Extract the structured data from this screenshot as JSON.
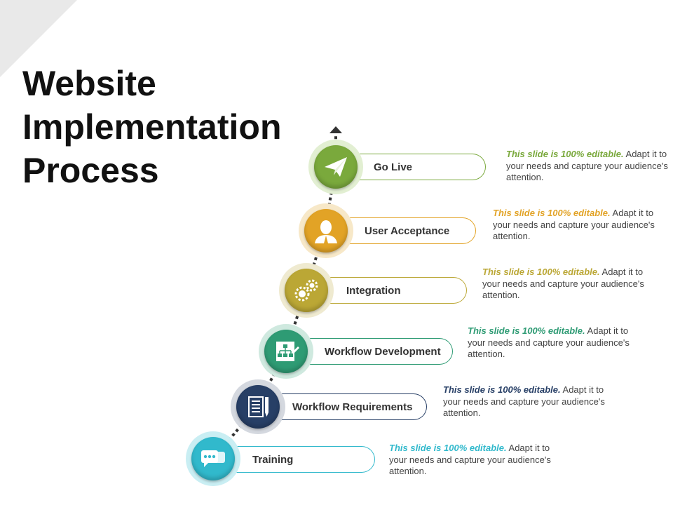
{
  "title": {
    "line1": "Website",
    "line2": "Implementation",
    "line3": "Process"
  },
  "steps": [
    {
      "label": "Go Live",
      "icon": "paper-plane-icon",
      "color": "#7aa93c",
      "halo": "#e2efd2",
      "desc_em": "This slide is 100% editable.",
      "desc_rest": " Adapt it to your needs and capture your audience's attention."
    },
    {
      "label": "User Acceptance",
      "icon": "user-icon",
      "color": "#e2a326",
      "halo": "#f7e8c8",
      "desc_em": "This slide is 100% editable.",
      "desc_rest": " Adapt it to your needs and capture your audience's attention."
    },
    {
      "label": "Integration",
      "icon": "gears-icon",
      "color": "#bba735",
      "halo": "#efead0",
      "desc_em": "This slide is 100% editable.",
      "desc_rest": " Adapt it to your needs and capture your audience's attention."
    },
    {
      "label": "Workflow Development",
      "icon": "workflow-board-icon",
      "color": "#2e9b74",
      "halo": "#cfe9df",
      "desc_em": "This slide is 100% editable.",
      "desc_rest": " Adapt it to your needs and capture your audience's attention."
    },
    {
      "label": "Workflow Requirements",
      "icon": "notebook-pen-icon",
      "color": "#273f66",
      "halo": "#d4d8df",
      "desc_em": "This slide is 100% editable.",
      "desc_rest": " Adapt it to your needs and capture your audience's attention."
    },
    {
      "label": "Training",
      "icon": "chat-bubbles-icon",
      "color": "#31b9cc",
      "halo": "#c9eef3",
      "desc_em": "This slide is 100% editable.",
      "desc_rest": " Adapt it to your needs and capture your audience's attention."
    }
  ]
}
